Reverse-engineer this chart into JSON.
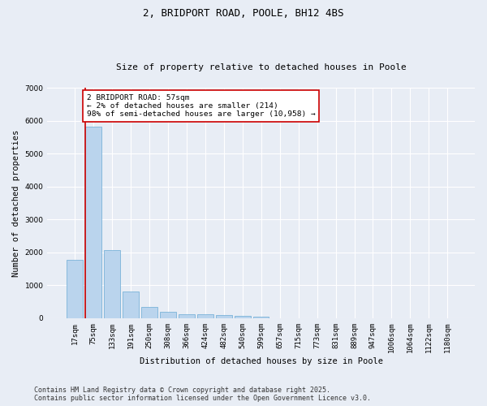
{
  "title": "2, BRIDPORT ROAD, POOLE, BH12 4BS",
  "subtitle": "Size of property relative to detached houses in Poole",
  "xlabel": "Distribution of detached houses by size in Poole",
  "ylabel": "Number of detached properties",
  "categories": [
    "17sqm",
    "75sqm",
    "133sqm",
    "191sqm",
    "250sqm",
    "308sqm",
    "366sqm",
    "424sqm",
    "482sqm",
    "540sqm",
    "599sqm",
    "657sqm",
    "715sqm",
    "773sqm",
    "831sqm",
    "889sqm",
    "947sqm",
    "1006sqm",
    "1064sqm",
    "1122sqm",
    "1180sqm"
  ],
  "values": [
    1780,
    5820,
    2080,
    820,
    340,
    190,
    120,
    110,
    90,
    65,
    50,
    0,
    0,
    0,
    0,
    0,
    0,
    0,
    0,
    0,
    0
  ],
  "bar_color": "#bad4ed",
  "bar_edge_color": "#6aaad4",
  "vline_color": "#cc0000",
  "annotation_text": "2 BRIDPORT ROAD: 57sqm\n← 2% of detached houses are smaller (214)\n98% of semi-detached houses are larger (10,958) →",
  "annotation_box_color": "#ffffff",
  "annotation_edge_color": "#cc0000",
  "ylim": [
    0,
    7000
  ],
  "yticks": [
    0,
    1000,
    2000,
    3000,
    4000,
    5000,
    6000,
    7000
  ],
  "background_color": "#e8edf5",
  "plot_bg_color": "#e8edf5",
  "grid_color": "#ffffff",
  "footer_line1": "Contains HM Land Registry data © Crown copyright and database right 2025.",
  "footer_line2": "Contains public sector information licensed under the Open Government Licence v3.0.",
  "title_fontsize": 9,
  "subtitle_fontsize": 8,
  "axis_label_fontsize": 7.5,
  "tick_fontsize": 6.5,
  "annotation_fontsize": 6.8,
  "footer_fontsize": 6
}
